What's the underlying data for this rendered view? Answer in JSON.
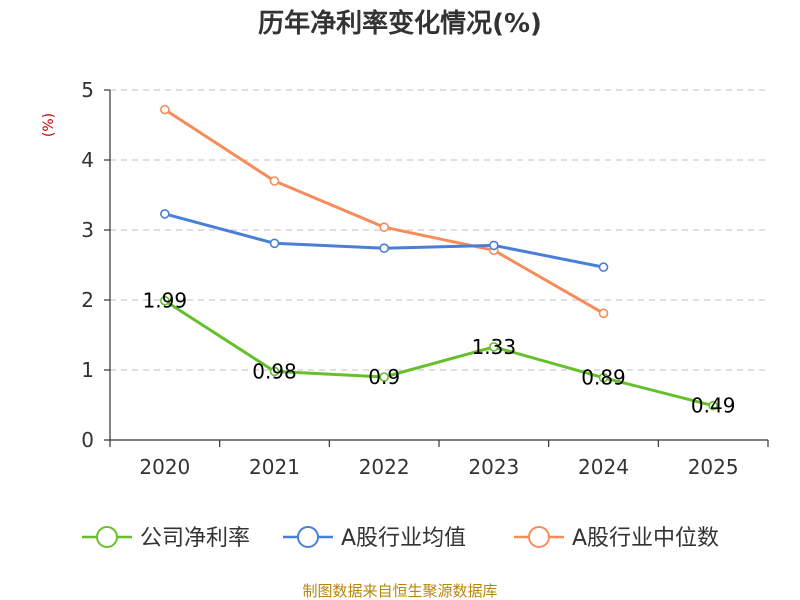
{
  "chart_data": {
    "type": "line",
    "title": "历年净利率变化情况(%)",
    "ylabel": "(%)",
    "xlabel": "",
    "ylim": [
      0,
      5
    ],
    "yticks": [
      0,
      1,
      2,
      3,
      4,
      5
    ],
    "categories": [
      "2020",
      "2021",
      "2022",
      "2023",
      "2024",
      "2025"
    ],
    "grid": "horizontal-dashed",
    "legend_position": "bottom",
    "series": [
      {
        "name": "公司净利率",
        "color": "#66c02c",
        "values": [
          1.99,
          0.98,
          0.9,
          1.33,
          0.89,
          0.49
        ],
        "labels": [
          "1.99",
          "0.98",
          "0.9",
          "1.33",
          "0.89",
          "0.49"
        ]
      },
      {
        "name": "A股行业均值",
        "color": "#4a7fd8",
        "values": [
          3.23,
          2.81,
          2.74,
          2.78,
          2.47,
          null
        ]
      },
      {
        "name": "A股行业中位数",
        "color": "#f78c5a",
        "values": [
          4.72,
          3.7,
          3.04,
          2.71,
          1.81,
          null
        ]
      }
    ]
  },
  "footer": {
    "source": "制图数据来自恒生聚源数据库"
  }
}
